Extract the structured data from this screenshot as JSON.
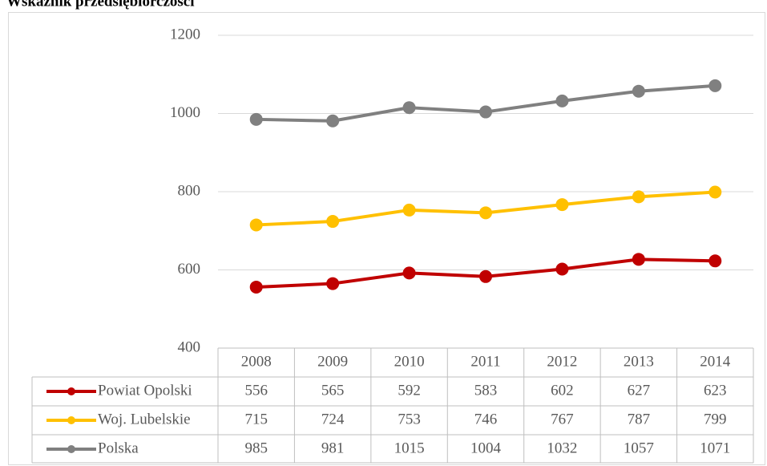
{
  "chart_data": {
    "type": "line",
    "title": "Wskaźnik przedsiębiorczości",
    "categories": [
      "2008",
      "2009",
      "2010",
      "2011",
      "2012",
      "2013",
      "2014"
    ],
    "series": [
      {
        "name": "Powiat Opolski",
        "color": "#c00000",
        "values": [
          556,
          565,
          592,
          583,
          602,
          627,
          623
        ]
      },
      {
        "name": "Woj. Lubelskie",
        "color": "#ffc000",
        "values": [
          715,
          724,
          753,
          746,
          767,
          787,
          799
        ]
      },
      {
        "name": "Polska",
        "color": "#808080",
        "values": [
          985,
          981,
          1015,
          1004,
          1032,
          1057,
          1071
        ]
      }
    ],
    "ylim": [
      400,
      1200
    ],
    "yticks": [
      400,
      600,
      800,
      1000,
      1200
    ],
    "grid": true
  }
}
